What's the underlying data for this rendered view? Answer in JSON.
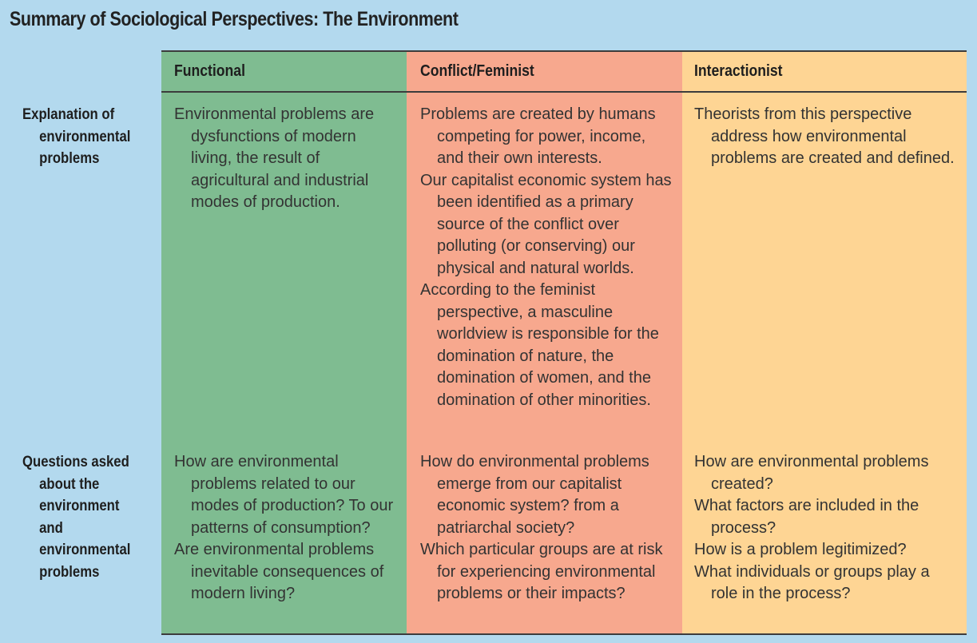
{
  "title": "Summary of Sociological Perspectives: The Environment",
  "colors": {
    "page_background": "#b3d9ee",
    "functional": "#7fbc91",
    "conflict_feminist": "#f7a88e",
    "interactionist": "#fed594"
  },
  "columns": [
    "Functional",
    "Conflict/Feminist",
    "Interactionist"
  ],
  "rows": [
    {
      "label": [
        "Explanation of",
        "environmental",
        "problems"
      ],
      "functional": [
        "Environmental problems are dysfunctions of modern living, the result of agricultural and industrial modes of production."
      ],
      "conflict_feminist": [
        "Problems are created by humans competing for power, income, and their own interests.",
        "Our capitalist economic system has been identified as a primary source of the conflict over polluting (or conserving) our physical and natural worlds.",
        "According to the feminist perspective, a masculine worldview is responsible for the domination of nature, the domination of women, and the domination of other minorities."
      ],
      "interactionist": [
        "Theorists from this perspective address how environmental problems are created and defined."
      ]
    },
    {
      "label": [
        "Questions asked",
        "about the",
        "environment",
        "and",
        "environmental",
        "problems"
      ],
      "functional": [
        "How are environmental problems related to our modes of production? To our patterns of consumption?",
        "Are environmental problems inevitable consequences of modern living?"
      ],
      "conflict_feminist": [
        "How do environmental problems emerge from our capitalist economic system? from a patriarchal society?",
        "Which particular groups are at risk for experiencing environmental problems or their impacts?"
      ],
      "interactionist": [
        "How are environmental problems created?",
        "What factors are included in the process?",
        "How is a problem legitimized?",
        "What individuals or groups play a role in the process?"
      ]
    }
  ]
}
